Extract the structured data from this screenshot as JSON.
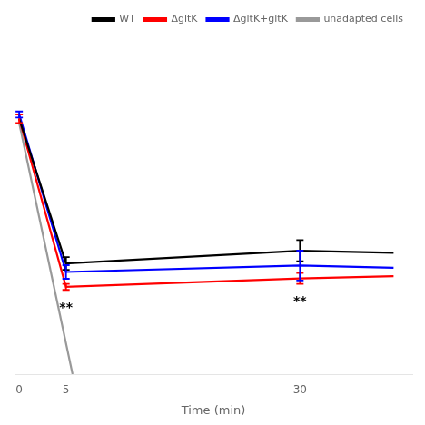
{
  "chart_data": {
    "type": "line",
    "xlabel": "Time (min)",
    "xlim": [
      -0.5,
      42
    ],
    "xticks": [
      0,
      5,
      30
    ],
    "ylim": [
      3.5,
      11.5
    ],
    "tick_labels": "x",
    "grid": false,
    "legend": "upper right",
    "series": [
      {
        "name": "WT",
        "color": "#000000",
        "x": [
          0,
          5,
          30,
          40
        ],
        "values": [
          9.5,
          6.1,
          6.4,
          6.35
        ],
        "yerr": [
          0.0,
          0.15,
          0.25,
          0.0
        ]
      },
      {
        "name": "ΔgltK",
        "color": "#ff0000",
        "x": [
          0,
          5,
          30,
          40
        ],
        "values": [
          9.5,
          5.55,
          5.75,
          5.8
        ],
        "yerr": [
          0.1,
          0.07,
          0.13,
          0.0
        ]
      },
      {
        "name": "ΔgltK+gltK",
        "color": "#0000ff",
        "x": [
          0,
          5,
          30,
          40
        ],
        "values": [
          9.6,
          5.9,
          6.05,
          6.0
        ],
        "yerr": [
          0.07,
          0.16,
          0.35,
          0.0
        ]
      },
      {
        "name": "unadapted cells",
        "color": "#999999",
        "x": [
          0,
          5.7
        ],
        "values": [
          9.4,
          3.5
        ],
        "yerr": [
          0.0,
          0.0
        ]
      }
    ],
    "annotations": [
      {
        "text": "**",
        "x": 5,
        "y": 5.2
      },
      {
        "text": "**",
        "x": 30,
        "y": 5.35
      }
    ]
  }
}
